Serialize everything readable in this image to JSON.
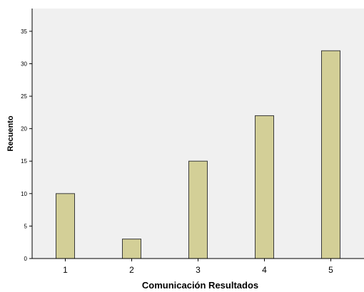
{
  "chart_data": {
    "type": "bar",
    "title": "",
    "xlabel": "Comunicación Resultados",
    "ylabel": "Recuento",
    "categories": [
      "1",
      "2",
      "3",
      "4",
      "5"
    ],
    "values": [
      10,
      3,
      15,
      22,
      32
    ],
    "ylim": [
      0,
      38.5
    ],
    "yticks": [
      0,
      5,
      10,
      15,
      20,
      25,
      30,
      35
    ],
    "grid": false,
    "colors": {
      "plot_background": "#f0f0f0",
      "bar_fill": "#d3cf97",
      "bar_stroke": "#3a3a3a"
    }
  }
}
